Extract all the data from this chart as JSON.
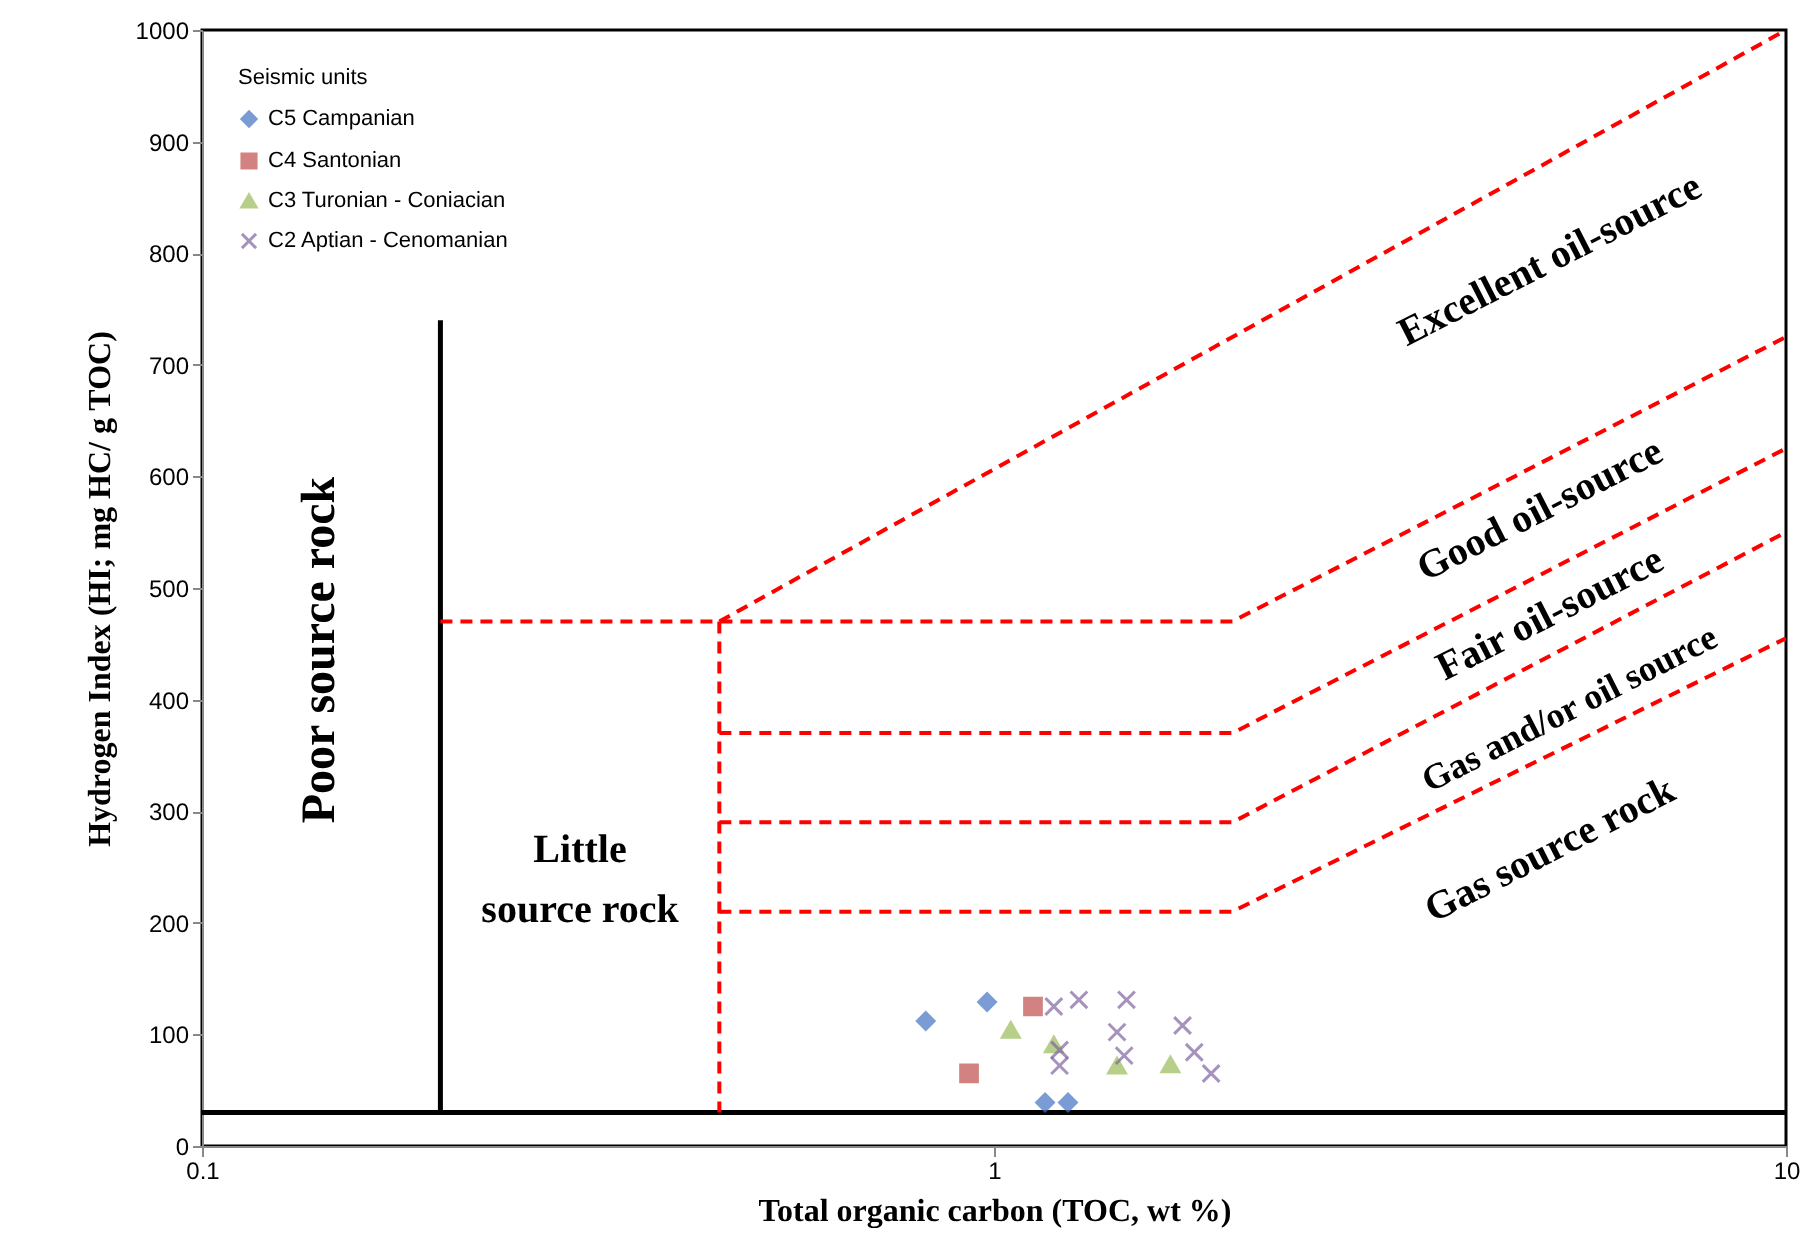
{
  "chart_data": {
    "type": "scatter",
    "xlabel": "Total organic carbon (TOC, wt %)",
    "ylabel": "Hydrogen Index (HI; mg HC/ g TOC)",
    "log": "x",
    "xlim": [
      0.1,
      10
    ],
    "xticks": [
      0.1,
      1,
      10
    ],
    "ylim": [
      0,
      1000
    ],
    "yticks": [
      0,
      100,
      200,
      300,
      400,
      500,
      600,
      700,
      800,
      900,
      1000
    ],
    "grid": false,
    "legend": "top left",
    "legend_title": "Seismic units",
    "series": [
      {
        "name": "C5   Campanian",
        "color": "#4472c4",
        "marker": "diamond",
        "x": [
          0.82,
          0.98,
          1.16,
          1.24
        ],
        "values": [
          112,
          129,
          39,
          39
        ]
      },
      {
        "name": "C4   Santonian",
        "color": "#c0504d",
        "marker": "square",
        "x": [
          1.12,
          0.93
        ],
        "values": [
          125,
          65
        ]
      },
      {
        "name": "C3   Turonian - Coniacian",
        "color": "#9bbb59",
        "marker": "triangle",
        "x": [
          1.05,
          1.19,
          1.43,
          1.67
        ],
        "values": [
          104,
          91,
          72,
          73
        ]
      },
      {
        "name": "C2   Aptian - Cenomanian",
        "color": "#8064a2",
        "marker": "cross",
        "x": [
          1.19,
          1.28,
          1.47,
          1.43,
          1.46,
          1.21,
          1.21,
          1.73,
          1.79,
          1.88
        ],
        "values": [
          125,
          131,
          131,
          102,
          81,
          86,
          72,
          108,
          84,
          65
        ]
      },
      {
        "type": "line",
        "color": "#000000",
        "line_style": "solid",
        "x": [
          0.2,
          0.2
        ],
        "values": [
          30,
          740
        ]
      },
      {
        "type": "line",
        "color": "#000000",
        "line_style": "solid",
        "x": [
          0.1,
          10
        ],
        "values": [
          30,
          30
        ]
      },
      {
        "type": "line",
        "color": "#ff0000",
        "line_style": "dashed",
        "x": [
          0.2,
          0.45,
          2,
          10
        ],
        "values": [
          470,
          470,
          470,
          725
        ]
      },
      {
        "type": "line",
        "color": "#ff0000",
        "line_style": "dashed",
        "x": [
          0.45,
          10
        ],
        "values": [
          470,
          1000
        ]
      },
      {
        "type": "line",
        "color": "#ff0000",
        "line_style": "dashed",
        "x": [
          0.45,
          0.45
        ],
        "values": [
          470,
          30
        ]
      },
      {
        "type": "line",
        "color": "#ff0000",
        "line_style": "dashed",
        "x": [
          0.45,
          2,
          10
        ],
        "values": [
          370,
          370,
          625
        ]
      },
      {
        "type": "line",
        "color": "#ff0000",
        "line_style": "dashed",
        "x": [
          0.45,
          2,
          10
        ],
        "values": [
          290,
          290,
          550
        ]
      },
      {
        "type": "line",
        "color": "#ff0000",
        "line_style": "dashed",
        "x": [
          0.45,
          2,
          10
        ],
        "values": [
          210,
          210,
          455
        ]
      }
    ],
    "annotations": [
      "Poor source rock",
      "Little\nsource rock",
      "Excellent oil-source",
      "Good oil-source",
      "Fair oil-source",
      "Gas and/or oil source",
      "Gas source rock"
    ]
  }
}
